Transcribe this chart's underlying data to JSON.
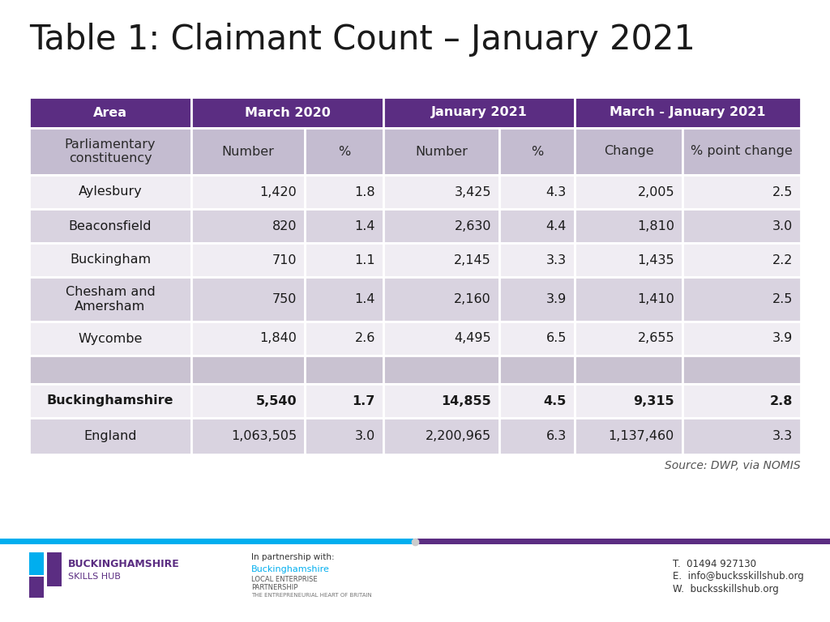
{
  "title": "Table 1: Claimant Count – January 2021",
  "header_bg_color": "#5b2d82",
  "header_text_color": "#ffffff",
  "subheader_bg_color": "#c4bcd0",
  "row_bg_light": "#ece9f0",
  "row_bg_medium": "#d4cedd",
  "row_bg_white": "#f5f4f7",
  "source_text": "Source: DWP, via NOMIS",
  "col_headers": [
    "Area",
    "March 2020",
    "January 2021",
    "March - January 2021"
  ],
  "sub_headers": [
    "Parliamentary\nconstituency",
    "Number",
    "%",
    "Number",
    "%",
    "Change",
    "% point change"
  ],
  "rows": [
    [
      "Aylesbury",
      "1,420",
      "1.8",
      "3,425",
      "4.3",
      "2,005",
      "2.5"
    ],
    [
      "Beaconsfield",
      "820",
      "1.4",
      "2,630",
      "4.4",
      "1,810",
      "3.0"
    ],
    [
      "Buckingham",
      "710",
      "1.1",
      "2,145",
      "3.3",
      "1,435",
      "2.2"
    ],
    [
      "Chesham and\nAmersham",
      "750",
      "1.4",
      "2,160",
      "3.9",
      "1,410",
      "2.5"
    ],
    [
      "Wycombe",
      "1,840",
      "2.6",
      "4,495",
      "6.5",
      "2,655",
      "3.9"
    ],
    [
      "",
      "",
      "",
      "",
      "",
      "",
      ""
    ],
    [
      "Buckinghamshire",
      "5,540",
      "1.7",
      "14,855",
      "4.5",
      "9,315",
      "2.8"
    ],
    [
      "England",
      "1,063,505",
      "3.0",
      "2,200,965",
      "6.3",
      "1,137,460",
      "3.3"
    ]
  ],
  "bold_rows": [
    6
  ],
  "row_colors": [
    "#f0edf3",
    "#d9d3e0",
    "#f0edf3",
    "#d9d3e0",
    "#f0edf3",
    "#c9c2d1",
    "#f0edf3",
    "#d9d3e0"
  ],
  "footer_bar_color1": "#00aeef",
  "footer_bar_color2": "#5b2d82",
  "title_fontsize": 30,
  "table_fontsize": 11.5
}
